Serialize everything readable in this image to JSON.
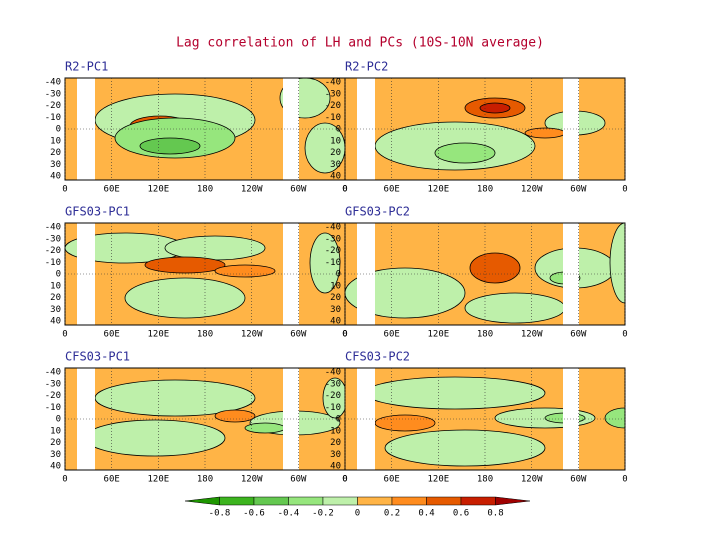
{
  "title": "Lag correlation of LH and PCs (10S-10N average)",
  "panels": [
    {
      "label": "R2-PC1"
    },
    {
      "label": "R2-PC2"
    },
    {
      "label": "GFS03-PC1"
    },
    {
      "label": "GFS03-PC2"
    },
    {
      "label": "CFS03-PC1"
    },
    {
      "label": "CFS03-PC2"
    }
  ],
  "x_axis": {
    "ticks": [
      "0",
      "60E",
      "120E",
      "180",
      "120W",
      "60W",
      "0"
    ]
  },
  "y_axis": {
    "ticks": [
      "-40",
      "-30",
      "-20",
      "-10",
      "0",
      "10",
      "20",
      "30",
      "40"
    ]
  },
  "colorbar": {
    "labels": [
      "-0.8",
      "-0.6",
      "-0.4",
      "-0.2",
      "0",
      "0.2",
      "0.4",
      "0.6",
      "0.8"
    ],
    "colors": [
      "#1e9600",
      "#3cb41e",
      "#64c850",
      "#96e67d",
      "#bef0aa",
      "#ffb446",
      "#ff8c1e",
      "#e65a00",
      "#c81e00",
      "#a00000"
    ]
  }
}
